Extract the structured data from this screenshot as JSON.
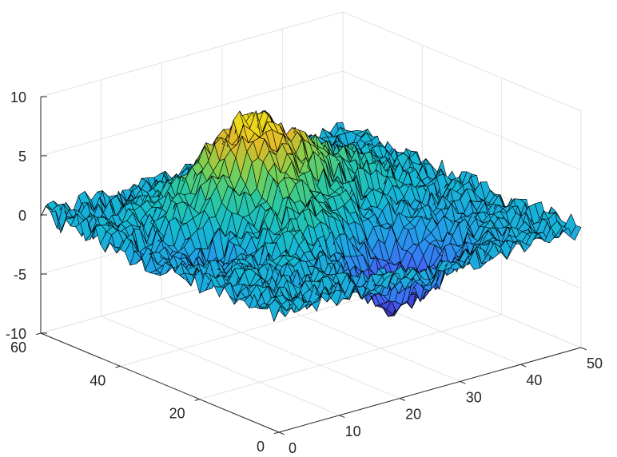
{
  "chart_data": {
    "type": "surface",
    "colormap": "parula",
    "edge_color": "#000000",
    "grid": true,
    "x": {
      "lim": [
        0,
        50
      ],
      "ticks": [
        0,
        10,
        20,
        30,
        40,
        50
      ],
      "tick_labels": [
        "0",
        "10",
        "20",
        "30",
        "40",
        "50"
      ]
    },
    "y": {
      "lim": [
        0,
        60
      ],
      "ticks": [
        0,
        20,
        40,
        60
      ],
      "tick_labels": [
        "0",
        "20",
        "40",
        "60"
      ]
    },
    "z": {
      "lim": [
        -10,
        10
      ],
      "ticks": [
        -10,
        -5,
        0,
        5,
        10
      ],
      "tick_labels": [
        "-10",
        "-5",
        "0",
        "5",
        "10"
      ]
    },
    "grid_size": {
      "nx": 49,
      "ny": 49
    },
    "features": [
      {
        "kind": "peak",
        "x": 20,
        "y": 38,
        "height": 8.5
      },
      {
        "kind": "peak",
        "x": 22,
        "y": 22,
        "height": 3.0
      },
      {
        "kind": "peak",
        "x": 35,
        "y": 40,
        "height": 2.5
      },
      {
        "kind": "valley",
        "x": 28,
        "y": 15,
        "depth": -6.5
      },
      {
        "kind": "valley",
        "x": 12,
        "y": 32,
        "depth": -3.0
      }
    ],
    "noise_amplitude": 1.0
  }
}
